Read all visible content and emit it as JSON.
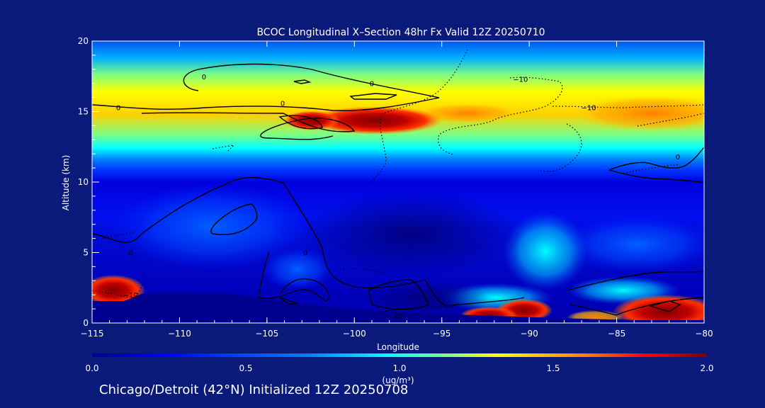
{
  "chart_data": {
    "type": "heatmap",
    "title": "BCOC Longitudinal X–Section 48hr  Fx Valid 12Z 20250710",
    "xlabel": "Longitude",
    "ylabel": "Altitude (km)",
    "xlim": [
      -115,
      -80
    ],
    "ylim": [
      0,
      20
    ],
    "x_ticks": [
      "−115",
      "−110",
      "−105",
      "−100",
      "−95",
      "−90",
      "−85",
      "−80"
    ],
    "y_ticks": [
      "0",
      "5",
      "10",
      "15",
      "20"
    ],
    "colorbar": {
      "min": 0.0,
      "max": 2.0,
      "ticks": [
        "0.0",
        "0.5",
        "1.0",
        "1.5",
        "2.0"
      ],
      "unit": "(ug/m³)",
      "colormap": "jet",
      "colors": [
        "#00008f",
        "#0000ff",
        "#0080ff",
        "#00ffff",
        "#80ff80",
        "#ffff00",
        "#ff8000",
        "#ff0000",
        "#800000"
      ]
    },
    "contour_labels": [
      {
        "text": "0",
        "lon": -108.6,
        "alt": 17.5
      },
      {
        "text": "0",
        "lon": -113.5,
        "alt": 15.3
      },
      {
        "text": "0",
        "lon": -104.1,
        "alt": 15.6
      },
      {
        "text": "0",
        "lon": -99.0,
        "alt": 17.0
      },
      {
        "text": "0",
        "lon": -112.8,
        "alt": 5.0
      },
      {
        "text": "0",
        "lon": -102.8,
        "alt": 5.0
      },
      {
        "text": "0",
        "lon": -81.5,
        "alt": 11.8
      },
      {
        "text": "−10",
        "lon": -90.5,
        "alt": 17.3
      },
      {
        "text": "−10",
        "lon": -86.6,
        "alt": 15.3
      },
      {
        "text": "−10",
        "lon": -112.8,
        "alt": 2.0
      },
      {
        "text": "10",
        "lon": -97.5,
        "alt": 0.5
      }
    ],
    "grid": false,
    "legend": "none"
  },
  "footer": "Chicago/Detroit (42°N) Initialized 12Z 20250708"
}
